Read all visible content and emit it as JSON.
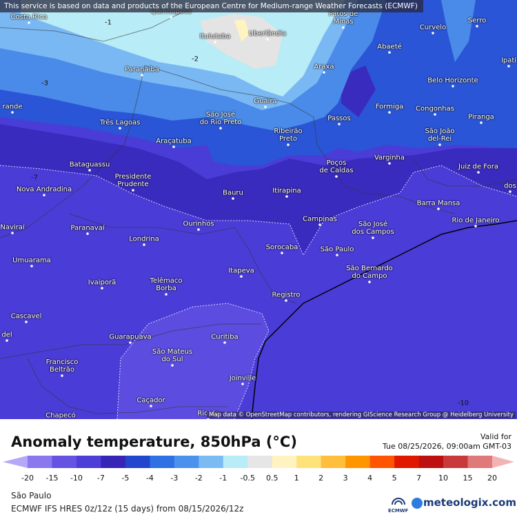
{
  "notice": "This service is based on data and products of the European Centre for Medium-range Weather Forecasts (ECMWF)",
  "cities": [
    {
      "lines": [
        "Costa Rica"
      ]
    },
    {
      "lines": [
        "Quirinópolis"
      ]
    },
    {
      "lines": [
        "Patos de",
        "Minas"
      ]
    },
    {
      "lines": [
        "Curvelo"
      ]
    },
    {
      "lines": [
        "Serro"
      ]
    },
    {
      "lines": [
        "Ituiutaba"
      ]
    },
    {
      "lines": [
        "Uberlândia"
      ]
    },
    {
      "lines": [
        "Abaeté"
      ]
    },
    {
      "lines": [
        "Ipati"
      ]
    },
    {
      "lines": [
        "Paranaíba"
      ]
    },
    {
      "lines": [
        "Araxá"
      ]
    },
    {
      "lines": [
        "Belo Horizonte"
      ]
    },
    {
      "lines": [
        "rande"
      ]
    },
    {
      "lines": [
        "Guaíra"
      ]
    },
    {
      "lines": [
        "Formiga"
      ]
    },
    {
      "lines": [
        "Congonhas"
      ]
    },
    {
      "lines": [
        "Piranga"
      ]
    },
    {
      "lines": [
        "Três Lagoas"
      ]
    },
    {
      "lines": [
        "São José",
        "do Rio Preto"
      ]
    },
    {
      "lines": [
        "Ribeirão",
        "Preto"
      ]
    },
    {
      "lines": [
        "Passos"
      ]
    },
    {
      "lines": [
        "São João",
        "del-Rei"
      ]
    },
    {
      "lines": [
        "Araçatuba"
      ]
    },
    {
      "lines": [
        "Poços",
        "de Caldas"
      ]
    },
    {
      "lines": [
        "Varginha"
      ]
    },
    {
      "lines": [
        "Juiz de Fora"
      ]
    },
    {
      "lines": [
        "Bataguassu"
      ]
    },
    {
      "lines": [
        "Presidente",
        "Prudente"
      ]
    },
    {
      "lines": [
        "Nova Andradina"
      ]
    },
    {
      "lines": [
        "Bauru"
      ]
    },
    {
      "lines": [
        "Itirapina"
      ]
    },
    {
      "lines": [
        "dos"
      ]
    },
    {
      "lines": [
        "Barra Mansa"
      ]
    },
    {
      "lines": [
        "Campinas"
      ]
    },
    {
      "lines": [
        "São José",
        "dos Campos"
      ]
    },
    {
      "lines": [
        "Rio de Janeiro"
      ]
    },
    {
      "lines": [
        "Naviraí"
      ]
    },
    {
      "lines": [
        "Paranavaí"
      ]
    },
    {
      "lines": [
        "Ourinhos"
      ]
    },
    {
      "lines": [
        "Londrina"
      ]
    },
    {
      "lines": [
        "Sorocaba"
      ]
    },
    {
      "lines": [
        "São Paulo"
      ]
    },
    {
      "lines": [
        "Umuarama"
      ]
    },
    {
      "lines": [
        "Itapeva"
      ]
    },
    {
      "lines": [
        "São Bernardo",
        "do Campo"
      ]
    },
    {
      "lines": [
        "Ivaiporã"
      ]
    },
    {
      "lines": [
        "Telêmaco",
        "Borba"
      ]
    },
    {
      "lines": [
        "Registro"
      ]
    },
    {
      "lines": [
        "Cascavel"
      ]
    },
    {
      "lines": [
        "del"
      ]
    },
    {
      "lines": [
        "Guarapuava"
      ]
    },
    {
      "lines": [
        "Curitiba"
      ]
    },
    {
      "lines": [
        "São Mateus",
        "do Sul"
      ]
    },
    {
      "lines": [
        "Francisco",
        "Beltrão"
      ]
    },
    {
      "lines": [
        "Joinville"
      ]
    },
    {
      "lines": [
        "Caçador"
      ]
    },
    {
      "lines": [
        "Chapecó"
      ]
    },
    {
      "lines": [
        "Rio do"
      ]
    }
  ],
  "contour_labels": [
    "-1",
    "-2",
    "-3",
    "-7",
    "-10"
  ],
  "attribution": "Map data © OpenStreetMap contributors, rendering GIScience Research Group @ Heidelberg University",
  "title": "Anomaly temperature, 850hPa (°C)",
  "valid_label": "Valid for",
  "valid_time": "Tue 08/25/2026, 09:00am GMT-03",
  "legend": {
    "ticks": [
      "-20",
      "-15",
      "-10",
      "-7",
      "-5",
      "-4",
      "-3",
      "-2",
      "-1",
      "-0.5",
      "0.5",
      "1",
      "2",
      "3",
      "4",
      "5",
      "7",
      "10",
      "15",
      "20"
    ],
    "colors": [
      "#b6a8f6",
      "#8b78ee",
      "#6653e2",
      "#4c3ed6",
      "#3726b6",
      "#2247cc",
      "#2f70e2",
      "#4b92ec",
      "#7cbaf4",
      "#b8ecf6",
      "#e6e6e6",
      "#fff3c2",
      "#ffe27a",
      "#ffbf3c",
      "#ff9600",
      "#ff5500",
      "#e01800",
      "#bd1010",
      "#c93a3a",
      "#e07a7a",
      "#f3b3b3"
    ]
  },
  "location": "São Paulo",
  "model": "ECMWF IFS HRES 0z/12z (15 days) from 08/15/2026/12z",
  "logo_ecmwf": "ECMWF",
  "logo_site": "meteologix.com"
}
